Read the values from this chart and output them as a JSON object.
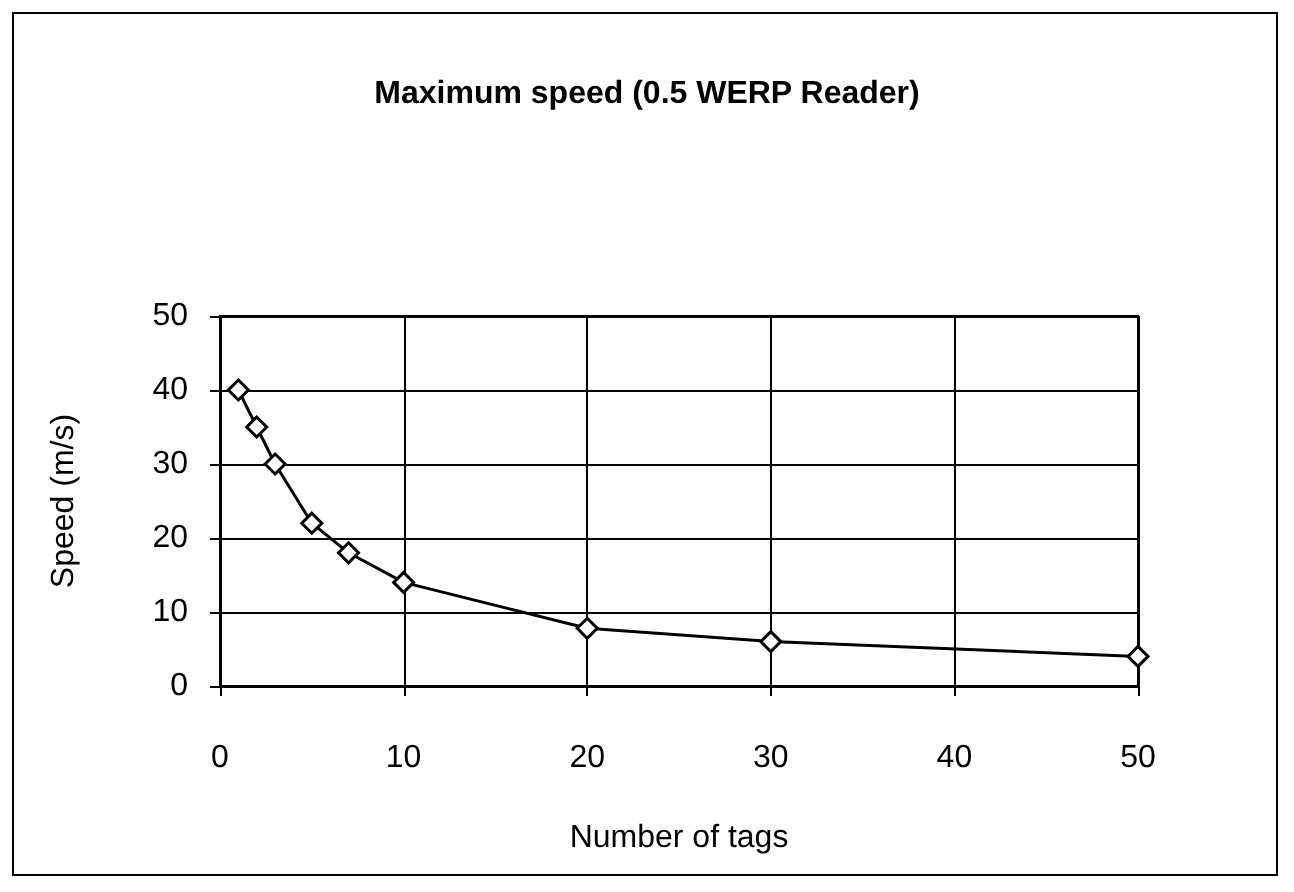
{
  "chart_data": {
    "type": "line",
    "title": "Maximum speed (0.5 WERP Reader)",
    "xlabel": "Number of tags",
    "ylabel": "Speed (m/s)",
    "x": [
      1,
      2,
      3,
      5,
      7,
      10,
      20,
      30,
      50
    ],
    "series": [
      {
        "color": "#000000",
        "values": [
          40,
          35,
          30,
          22,
          18,
          14,
          7.8,
          6,
          4
        ]
      }
    ],
    "xlim": [
      0,
      50
    ],
    "xticks": [
      0,
      10,
      20,
      30,
      40,
      50
    ],
    "ylim": [
      0,
      50
    ],
    "yticks": [
      0,
      10,
      20,
      30,
      40,
      50
    ],
    "grid": true,
    "marker": "diamond",
    "line_style": "solid"
  }
}
